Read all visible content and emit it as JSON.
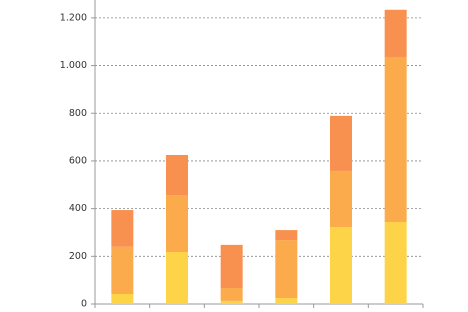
{
  "chart_data": {
    "type": "stacked-bar",
    "categories": [
      null,
      null,
      null,
      null,
      null,
      null
    ],
    "series": [
      {
        "color": "#fdd447",
        "values": [
          42,
          218,
          13,
          25,
          323,
          344
        ]
      },
      {
        "color": "#fbab4b",
        "values": [
          198,
          239,
          54,
          243,
          235,
          692
        ]
      },
      {
        "color": "#f8914f",
        "values": [
          154,
          168,
          181,
          42,
          231,
          198
        ]
      }
    ],
    "ylim": [
      0,
      1275
    ],
    "yticks": [
      0,
      200,
      400,
      600,
      800,
      {
        "value": 1000,
        "label": "1.000"
      },
      {
        "value": 1200,
        "label": "1.200"
      }
    ],
    "grid": true
  }
}
